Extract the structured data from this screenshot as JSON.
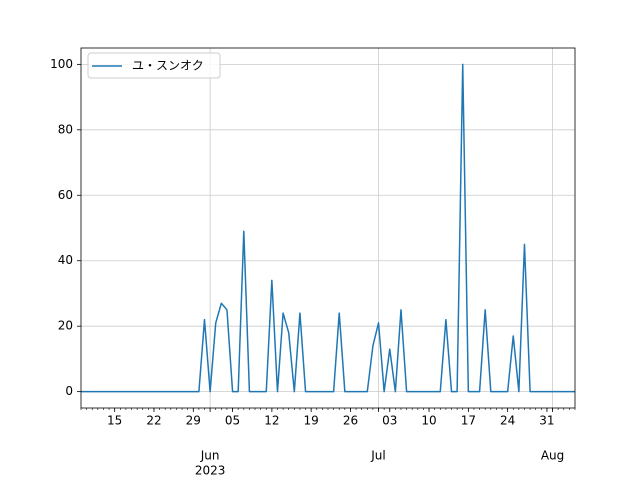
{
  "chart_data": {
    "type": "line",
    "x": [
      "2023-05-09",
      "2023-05-10",
      "2023-05-11",
      "2023-05-12",
      "2023-05-13",
      "2023-05-14",
      "2023-05-15",
      "2023-05-16",
      "2023-05-17",
      "2023-05-18",
      "2023-05-19",
      "2023-05-20",
      "2023-05-21",
      "2023-05-22",
      "2023-05-23",
      "2023-05-24",
      "2023-05-25",
      "2023-05-26",
      "2023-05-27",
      "2023-05-28",
      "2023-05-29",
      "2023-05-30",
      "2023-05-31",
      "2023-06-01",
      "2023-06-02",
      "2023-06-03",
      "2023-06-04",
      "2023-06-05",
      "2023-06-06",
      "2023-06-07",
      "2023-06-08",
      "2023-06-09",
      "2023-06-10",
      "2023-06-11",
      "2023-06-12",
      "2023-06-13",
      "2023-06-14",
      "2023-06-15",
      "2023-06-16",
      "2023-06-17",
      "2023-06-18",
      "2023-06-19",
      "2023-06-20",
      "2023-06-21",
      "2023-06-22",
      "2023-06-23",
      "2023-06-24",
      "2023-06-25",
      "2023-06-26",
      "2023-06-27",
      "2023-06-28",
      "2023-06-29",
      "2023-06-30",
      "2023-07-01",
      "2023-07-02",
      "2023-07-03",
      "2023-07-04",
      "2023-07-05",
      "2023-07-06",
      "2023-07-07",
      "2023-07-08",
      "2023-07-09",
      "2023-07-10",
      "2023-07-11",
      "2023-07-12",
      "2023-07-13",
      "2023-07-14",
      "2023-07-15",
      "2023-07-16",
      "2023-07-17",
      "2023-07-18",
      "2023-07-19",
      "2023-07-20",
      "2023-07-21",
      "2023-07-22",
      "2023-07-23",
      "2023-07-24",
      "2023-07-25",
      "2023-07-26",
      "2023-07-27",
      "2023-07-28",
      "2023-07-29",
      "2023-07-30",
      "2023-07-31",
      "2023-08-01",
      "2023-08-02",
      "2023-08-03",
      "2023-08-04",
      "2023-08-05"
    ],
    "series": [
      {
        "name": "ユ・スンオク",
        "color": "#1f77b4",
        "values": [
          0,
          0,
          0,
          0,
          0,
          0,
          0,
          0,
          0,
          0,
          0,
          0,
          0,
          0,
          0,
          0,
          0,
          0,
          0,
          0,
          0,
          0,
          22,
          0,
          21,
          27,
          25,
          0,
          0,
          49,
          0,
          0,
          0,
          0,
          34,
          0,
          24,
          18,
          0,
          24,
          0,
          0,
          0,
          0,
          0,
          0,
          24,
          0,
          0,
          0,
          0,
          0,
          14,
          21,
          0,
          13,
          0,
          25,
          0,
          0,
          0,
          0,
          0,
          0,
          0,
          22,
          0,
          0,
          100,
          0,
          0,
          0,
          25,
          0,
          0,
          0,
          0,
          17,
          0,
          45,
          0,
          0,
          0,
          0,
          0,
          0,
          0,
          0,
          0
        ]
      }
    ],
    "xlim": [
      "2023-05-09",
      "2023-08-05"
    ],
    "xticks": [
      {
        "value": "2023-05-15",
        "label": "15"
      },
      {
        "value": "2023-05-22",
        "label": "22"
      },
      {
        "value": "2023-05-29",
        "label": "29"
      },
      {
        "value": "2023-06-05",
        "label": "05"
      },
      {
        "value": "2023-06-12",
        "label": "12"
      },
      {
        "value": "2023-06-19",
        "label": "19"
      },
      {
        "value": "2023-06-26",
        "label": "26"
      },
      {
        "value": "2023-07-03",
        "label": "03"
      },
      {
        "value": "2023-07-10",
        "label": "10"
      },
      {
        "value": "2023-07-17",
        "label": "17"
      },
      {
        "value": "2023-07-24",
        "label": "24"
      },
      {
        "value": "2023-07-31",
        "label": "31"
      }
    ],
    "x_month_ticks": [
      {
        "value": "2023-06-01",
        "label": "Jun"
      },
      {
        "value": "2023-07-01",
        "label": "Jul"
      },
      {
        "value": "2023-08-01",
        "label": "Aug"
      }
    ],
    "year_label": "2023",
    "ylim": [
      -5,
      105
    ],
    "yticks": [
      0,
      20,
      40,
      60,
      80,
      100
    ],
    "grid": true,
    "legend": "upper left"
  }
}
